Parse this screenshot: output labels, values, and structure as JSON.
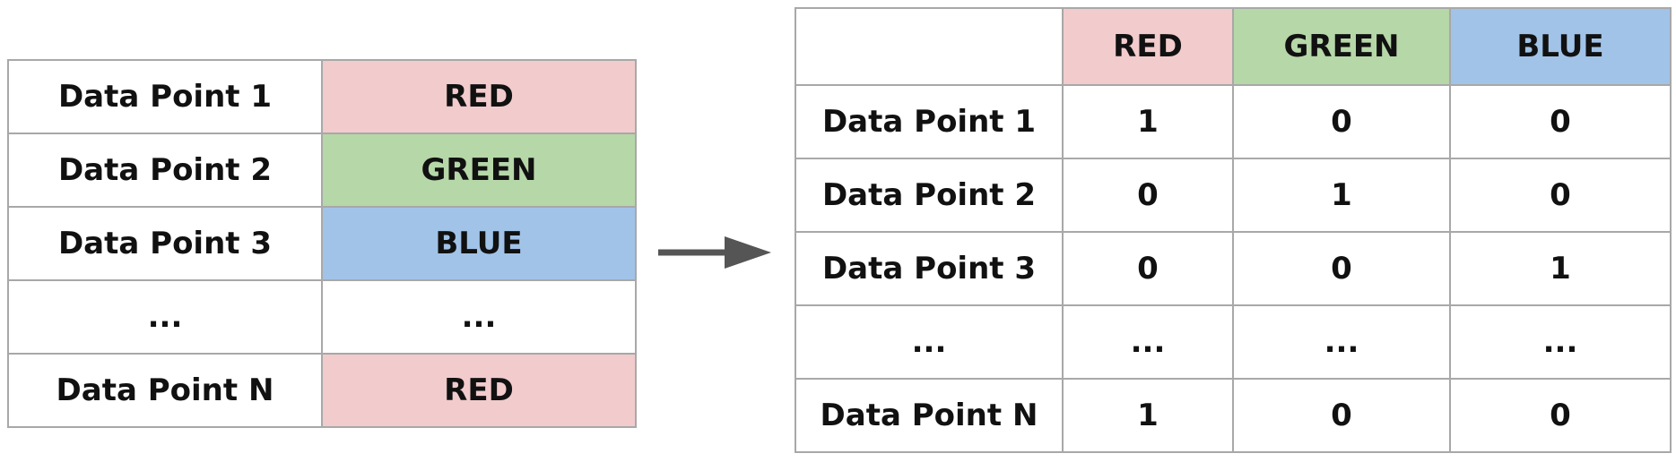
{
  "colors": {
    "red": "#f2cbcc",
    "green": "#b6d7a8",
    "blue": "#a1c3e8",
    "arrow": "#555555",
    "border": "#a8a8a8"
  },
  "left_table": {
    "rows": [
      {
        "label": "Data Point 1",
        "value": "RED",
        "color_key": "red"
      },
      {
        "label": "Data Point 2",
        "value": "GREEN",
        "color_key": "green"
      },
      {
        "label": "Data Point 3",
        "value": "BLUE",
        "color_key": "blue"
      },
      {
        "label": "...",
        "value": "...",
        "color_key": ""
      },
      {
        "label": "Data Point N",
        "value": "RED",
        "color_key": "red"
      }
    ]
  },
  "right_table": {
    "headers": [
      {
        "label": "RED",
        "color_key": "red"
      },
      {
        "label": "GREEN",
        "color_key": "green"
      },
      {
        "label": "BLUE",
        "color_key": "blue"
      }
    ],
    "rows": [
      {
        "label": "Data Point 1",
        "cells": [
          "1",
          "0",
          "0"
        ]
      },
      {
        "label": "Data Point 2",
        "cells": [
          "0",
          "1",
          "0"
        ]
      },
      {
        "label": "Data Point 3",
        "cells": [
          "0",
          "0",
          "1"
        ]
      },
      {
        "label": "...",
        "cells": [
          "...",
          "...",
          "..."
        ]
      },
      {
        "label": "Data Point N",
        "cells": [
          "1",
          "0",
          "0"
        ]
      }
    ]
  },
  "arrow_icon": "right-arrow-icon"
}
